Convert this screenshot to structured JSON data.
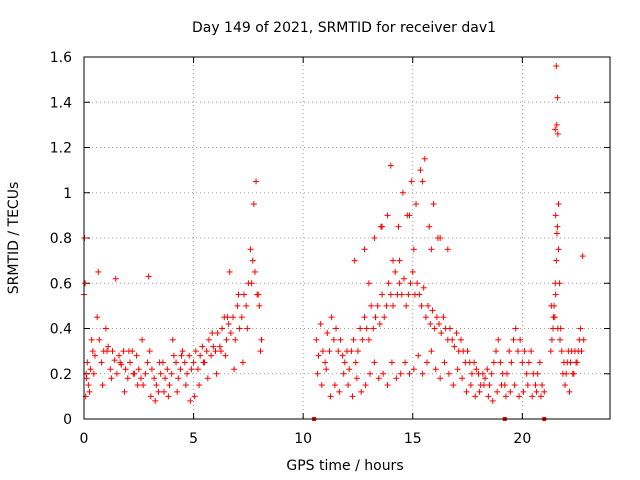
{
  "chart_data": {
    "type": "scatter",
    "title": "Day 149 of 2021, SRMTID for receiver dav1",
    "xlabel": "GPS time / hours",
    "ylabel": "SRMTID / TECUs",
    "xlim": [
      0,
      24
    ],
    "ylim": [
      0,
      1.6
    ],
    "xticks": [
      0,
      5,
      10,
      15,
      20
    ],
    "xtick_labels": [
      "0",
      "5",
      "10",
      "15",
      "20"
    ],
    "yticks": [
      0,
      0.2,
      0.4,
      0.6,
      0.8,
      1.0,
      1.2,
      1.4,
      1.6
    ],
    "ytick_labels": [
      "0",
      "0.2",
      "0.4",
      "0.6",
      "0.8",
      "1",
      "1.2",
      "1.4",
      "1.6"
    ],
    "grid": true,
    "marker": "+",
    "color": "#ff0000",
    "series": [
      {
        "name": "SRMTID",
        "x": [
          0.0,
          0.05,
          0.1,
          0.15,
          0.2,
          0.3,
          0.4,
          0.5,
          0.6,
          0.7,
          0.8,
          0.9,
          1.0,
          1.1,
          1.2,
          1.3,
          1.4,
          1.5,
          1.6,
          1.7,
          1.8,
          1.9,
          2.0,
          2.1,
          2.2,
          2.3,
          2.4,
          2.5,
          2.6,
          2.7,
          2.8,
          2.9,
          3.0,
          3.1,
          3.2,
          3.3,
          3.4,
          3.5,
          3.6,
          3.7,
          3.8,
          3.9,
          4.0,
          4.1,
          4.2,
          4.3,
          4.4,
          4.5,
          4.6,
          4.7,
          4.8,
          4.9,
          5.0,
          5.1,
          5.2,
          5.3,
          5.4,
          5.5,
          5.6,
          5.7,
          5.8,
          5.9,
          6.0,
          6.1,
          6.2,
          6.3,
          6.4,
          6.5,
          6.6,
          6.7,
          6.8,
          6.9,
          7.0,
          7.1,
          7.2,
          7.3,
          7.4,
          7.5,
          7.6,
          7.7,
          7.8,
          7.9,
          8.0,
          8.1,
          0.02,
          0.08,
          0.12,
          0.25,
          0.35,
          0.45,
          0.65,
          0.85,
          1.05,
          1.25,
          1.45,
          1.65,
          1.85,
          2.05,
          2.25,
          2.45,
          2.65,
          2.95,
          3.05,
          3.25,
          3.45,
          3.65,
          3.85,
          4.05,
          4.25,
          4.45,
          4.65,
          4.85,
          5.05,
          5.25,
          5.45,
          5.65,
          5.85,
          6.05,
          6.25,
          6.45,
          6.55,
          6.65,
          6.85,
          7.05,
          7.25,
          7.45,
          7.65,
          7.75,
          7.85,
          7.95,
          8.05,
          10.6,
          10.7,
          10.8,
          10.9,
          11.0,
          11.1,
          11.2,
          11.3,
          11.4,
          11.5,
          11.6,
          11.7,
          11.8,
          11.9,
          12.0,
          12.1,
          12.2,
          12.3,
          12.4,
          12.5,
          12.6,
          12.7,
          12.8,
          12.9,
          13.0,
          13.1,
          13.2,
          13.3,
          13.4,
          13.5,
          13.6,
          13.7,
          13.8,
          13.9,
          14.0,
          14.1,
          14.2,
          14.3,
          14.4,
          14.5,
          14.6,
          14.7,
          14.8,
          14.9,
          15.0,
          15.1,
          15.2,
          15.3,
          15.4,
          15.5,
          15.6,
          15.7,
          15.8,
          15.9,
          16.0,
          16.1,
          16.2,
          16.3,
          16.4,
          16.5,
          16.6,
          16.7,
          16.8,
          16.9,
          17.0,
          17.1,
          17.2,
          17.3,
          17.4,
          17.5,
          17.6,
          17.7,
          17.8,
          17.9,
          18.0,
          18.1,
          18.2,
          18.3,
          18.4,
          18.5,
          18.6,
          18.7,
          18.8,
          18.9,
          19.0,
          19.1,
          19.2,
          19.3,
          19.4,
          19.5,
          19.6,
          19.7,
          19.8,
          19.9,
          20.0,
          20.1,
          20.2,
          20.3,
          20.4,
          20.5,
          20.6,
          20.7,
          20.8,
          20.9,
          21.0,
          10.65,
          10.85,
          11.05,
          11.25,
          11.45,
          11.65,
          11.85,
          12.05,
          12.25,
          12.45,
          12.65,
          12.85,
          13.05,
          13.25,
          13.45,
          13.65,
          13.85,
          14.05,
          14.25,
          14.45,
          14.65,
          14.85,
          15.05,
          15.25,
          15.45,
          15.65,
          15.85,
          16.05,
          16.25,
          16.45,
          16.65,
          16.85,
          17.05,
          17.25,
          17.45,
          17.65,
          17.85,
          18.05,
          18.25,
          18.45,
          18.65,
          18.85,
          19.05,
          19.25,
          19.45,
          19.65,
          19.85,
          20.05,
          20.25,
          20.45,
          20.65,
          20.85,
          13.25,
          13.55,
          13.85,
          14.1,
          14.35,
          14.55,
          14.75,
          14.95,
          15.15,
          15.35,
          15.55,
          15.75,
          15.95,
          16.15,
          12.35,
          12.8,
          13.0,
          13.6,
          14.0,
          14.4,
          14.85,
          15.05,
          15.45,
          15.85,
          16.25,
          16.6,
          21.3,
          21.35,
          21.4,
          21.45,
          21.5,
          21.55,
          21.6,
          21.65,
          21.7,
          21.75,
          21.8,
          21.9,
          22.0,
          22.1,
          22.2,
          22.3,
          22.4,
          22.5,
          22.6,
          22.7,
          22.8,
          21.32,
          21.42,
          21.52,
          21.62,
          21.72,
          21.85,
          21.95,
          22.05,
          22.15,
          22.25,
          22.35,
          22.45,
          22.55,
          22.65,
          22.75,
          21.55,
          21.6,
          21.57,
          21.62,
          21.5,
          21.52,
          21.58,
          21.48,
          21.65
        ],
        "y": [
          0.55,
          0.6,
          0.2,
          0.25,
          0.15,
          0.22,
          0.3,
          0.28,
          0.45,
          0.35,
          0.25,
          0.3,
          0.4,
          0.32,
          0.22,
          0.3,
          0.26,
          0.2,
          0.28,
          0.24,
          0.3,
          0.22,
          0.18,
          0.25,
          0.3,
          0.2,
          0.28,
          0.22,
          0.18,
          0.15,
          0.2,
          0.25,
          0.3,
          0.22,
          0.18,
          0.15,
          0.12,
          0.2,
          0.25,
          0.18,
          0.22,
          0.15,
          0.2,
          0.28,
          0.25,
          0.18,
          0.22,
          0.3,
          0.25,
          0.2,
          0.28,
          0.22,
          0.25,
          0.3,
          0.22,
          0.28,
          0.32,
          0.25,
          0.3,
          0.35,
          0.28,
          0.32,
          0.3,
          0.38,
          0.32,
          0.4,
          0.45,
          0.35,
          0.42,
          0.38,
          0.45,
          0.35,
          0.5,
          0.4,
          0.45,
          0.55,
          0.5,
          0.6,
          0.75,
          0.7,
          0.65,
          0.55,
          0.5,
          0.35,
          0.8,
          0.1,
          0.18,
          0.12,
          0.35,
          0.2,
          0.65,
          0.15,
          0.3,
          0.18,
          0.62,
          0.25,
          0.12,
          0.3,
          0.2,
          0.15,
          0.35,
          0.63,
          0.1,
          0.08,
          0.25,
          0.12,
          0.1,
          0.35,
          0.12,
          0.28,
          0.15,
          0.08,
          0.1,
          0.15,
          0.25,
          0.18,
          0.38,
          0.2,
          0.3,
          0.28,
          0.45,
          0.65,
          0.22,
          0.55,
          0.25,
          0.4,
          0.6,
          0.95,
          1.05,
          0.55,
          0.3,
          0.35,
          0.28,
          0.42,
          0.3,
          0.25,
          0.38,
          0.3,
          0.45,
          0.35,
          0.4,
          0.3,
          0.35,
          0.28,
          0.25,
          0.3,
          0.22,
          0.3,
          0.35,
          0.25,
          0.3,
          0.4,
          0.35,
          0.45,
          0.4,
          0.35,
          0.5,
          0.4,
          0.45,
          0.5,
          0.42,
          0.55,
          0.45,
          0.5,
          0.6,
          0.55,
          0.5,
          0.65,
          0.55,
          0.6,
          0.55,
          0.62,
          0.5,
          0.55,
          0.6,
          0.65,
          0.55,
          0.6,
          0.55,
          0.5,
          0.58,
          0.45,
          0.5,
          0.42,
          0.48,
          0.4,
          0.45,
          0.42,
          0.38,
          0.45,
          0.4,
          0.35,
          0.4,
          0.35,
          0.32,
          0.38,
          0.3,
          0.35,
          0.3,
          0.25,
          0.3,
          0.25,
          0.2,
          0.25,
          0.22,
          0.2,
          0.15,
          0.2,
          0.18,
          0.22,
          0.15,
          0.2,
          0.25,
          0.3,
          0.35,
          0.25,
          0.2,
          0.15,
          0.2,
          0.3,
          0.25,
          0.35,
          0.4,
          0.3,
          0.35,
          0.25,
          0.3,
          0.2,
          0.25,
          0.3,
          0.2,
          0.15,
          0.2,
          0.25,
          0.15,
          0.12,
          0.2,
          0.15,
          0.22,
          0.1,
          0.15,
          0.12,
          0.2,
          0.15,
          0.1,
          0.18,
          0.12,
          0.15,
          0.2,
          0.25,
          0.18,
          0.2,
          0.15,
          0.25,
          0.18,
          0.2,
          0.25,
          0.2,
          0.22,
          0.28,
          0.2,
          0.25,
          0.3,
          0.22,
          0.18,
          0.25,
          0.2,
          0.15,
          0.22,
          0.18,
          0.12,
          0.15,
          0.1,
          0.12,
          0.15,
          0.1,
          0.08,
          0.12,
          0.15,
          0.1,
          0.12,
          0.15,
          0.1,
          0.12,
          0.15,
          0.1,
          0.12,
          0.1,
          0.8,
          0.85,
          0.9,
          0.7,
          0.85,
          1.0,
          0.9,
          1.05,
          0.95,
          1.1,
          1.15,
          0.85,
          0.95,
          0.8,
          0.7,
          0.75,
          0.6,
          0.85,
          1.12,
          0.7,
          0.9,
          0.75,
          1.05,
          0.75,
          0.8,
          0.75,
          0.3,
          0.35,
          0.4,
          0.5,
          0.6,
          0.7,
          0.85,
          0.95,
          0.6,
          0.4,
          0.3,
          0.25,
          0.2,
          0.3,
          0.25,
          0.2,
          0.3,
          0.25,
          0.35,
          0.3,
          0.35,
          0.5,
          0.45,
          0.55,
          0.4,
          0.35,
          0.2,
          0.15,
          0.25,
          0.12,
          0.3,
          0.2,
          0.25,
          0.3,
          0.4,
          0.72,
          1.56,
          1.42,
          1.3,
          1.26,
          1.28,
          0.9,
          0.82,
          0.45,
          0.75
        ]
      }
    ],
    "gap_markers_x": [
      10.5,
      19.2,
      21.0
    ]
  }
}
